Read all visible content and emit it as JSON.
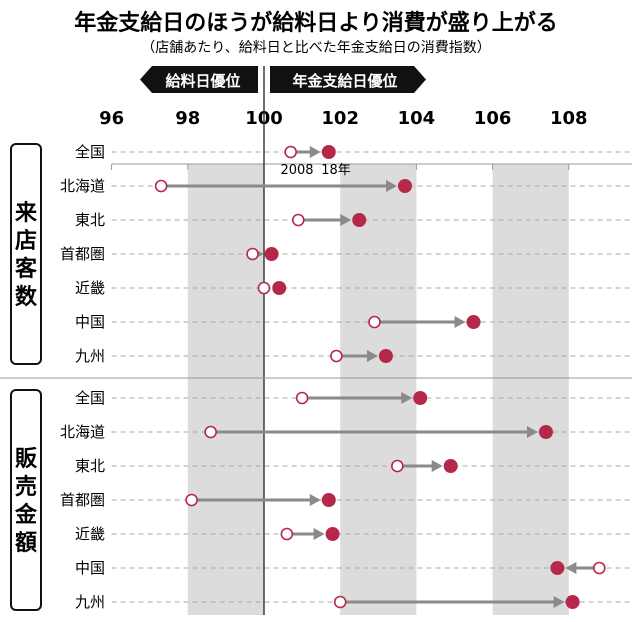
{
  "chart_data": {
    "type": "dot-arrow",
    "title": "年金支給日のほうが給料日より消費が盛り上がる",
    "subtitle": "（店舗あたり、給料日と比べた年金支給日の消費指数）",
    "left_label": "給料日優位",
    "right_label": "年金支給日優位",
    "xlim": [
      96,
      109
    ],
    "xticks": [
      96,
      98,
      100,
      102,
      104,
      106,
      108
    ],
    "shaded_bands": [
      [
        98,
        100
      ],
      [
        102,
        104
      ],
      [
        106,
        108
      ]
    ],
    "series_labels": {
      "from": "2008",
      "to": "18年"
    },
    "colors": {
      "filled": "#b5284a",
      "arrow": "#8a8a8a",
      "band": "#dcdcdc"
    },
    "groups": [
      {
        "name": "来店客数",
        "rows": [
          {
            "region": "全国",
            "from": 100.7,
            "to": 101.7
          },
          {
            "region": "北海道",
            "from": 97.3,
            "to": 103.7
          },
          {
            "region": "東北",
            "from": 100.9,
            "to": 102.5
          },
          {
            "region": "首都圏",
            "from": 99.7,
            "to": 100.2
          },
          {
            "region": "近畿",
            "from": 100.0,
            "to": 100.4
          },
          {
            "region": "中国",
            "from": 102.9,
            "to": 105.5
          },
          {
            "region": "九州",
            "from": 101.9,
            "to": 103.2
          }
        ]
      },
      {
        "name": "販売金額",
        "rows": [
          {
            "region": "全国",
            "from": 101.0,
            "to": 104.1
          },
          {
            "region": "北海道",
            "from": 98.6,
            "to": 107.4
          },
          {
            "region": "東北",
            "from": 103.5,
            "to": 104.9
          },
          {
            "region": "首都圏",
            "from": 98.1,
            "to": 101.7
          },
          {
            "region": "近畿",
            "from": 100.6,
            "to": 101.8
          },
          {
            "region": "中国",
            "from": 108.8,
            "to": 107.7
          },
          {
            "region": "九州",
            "from": 102.0,
            "to": 108.1
          }
        ]
      }
    ]
  }
}
